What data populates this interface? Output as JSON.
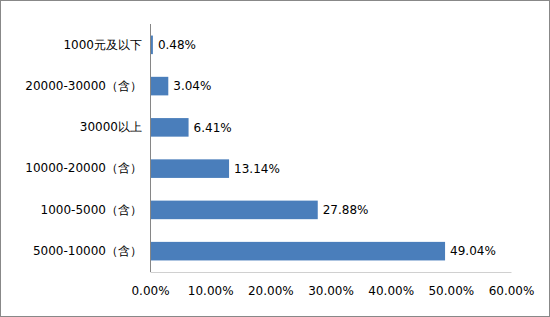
{
  "chart_data": {
    "type": "bar",
    "orientation": "horizontal",
    "categories": [
      "1000元及以下",
      "20000-30000（含）",
      "30000以上",
      "10000-20000（含）",
      "1000-5000（含）",
      "5000-10000（含）"
    ],
    "values": [
      0.48,
      3.04,
      6.41,
      13.14,
      27.88,
      49.04
    ],
    "value_labels": [
      "0.48%",
      "3.04%",
      "6.41%",
      "13.14%",
      "27.88%",
      "49.04%"
    ],
    "data_labels": true,
    "color": "#4a7ebb",
    "xlim": [
      0,
      60
    ],
    "xticks": [
      {
        "value": 0,
        "label": "0.00%"
      },
      {
        "value": 10,
        "label": "10.00%"
      },
      {
        "value": 20,
        "label": "20.00%"
      },
      {
        "value": 30,
        "label": "30.00%"
      },
      {
        "value": 40,
        "label": "40.00%"
      },
      {
        "value": 50,
        "label": "50.00%"
      },
      {
        "value": 60,
        "label": "60.00%"
      }
    ],
    "grid": false
  }
}
